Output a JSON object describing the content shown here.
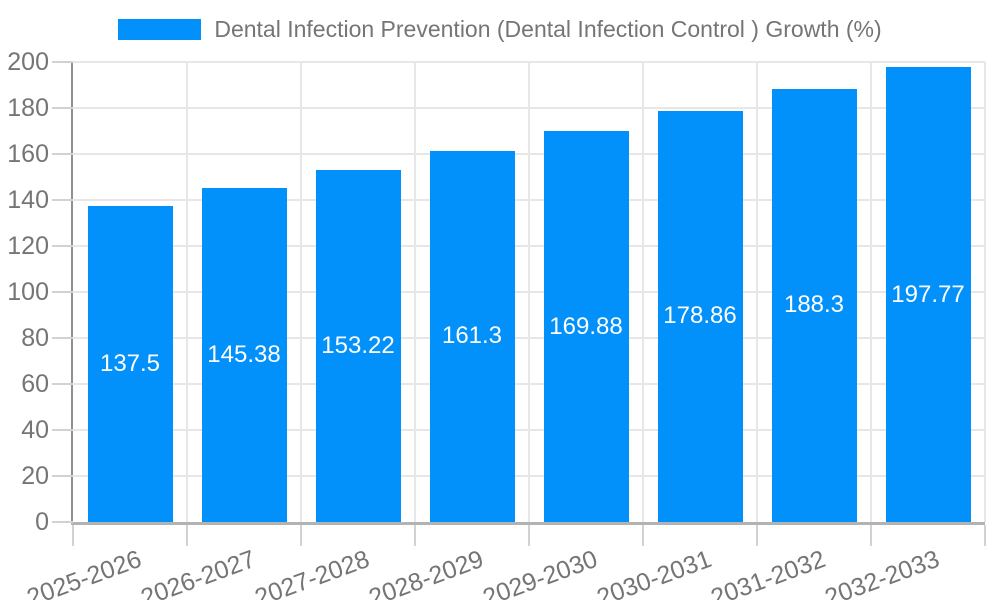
{
  "legend": {
    "label": "Dental Infection Prevention (Dental Infection Control ) Growth (%)"
  },
  "colors": {
    "bar": "#0290fa",
    "grid": "#e7e7e7",
    "tick": "#d2d2d2",
    "axis_y": "#8f8f8f",
    "axis_x": "#b3b3b3",
    "label_text": "#757575",
    "value_text": "#ffffff",
    "background": "#ffffff"
  },
  "chart_data": {
    "type": "bar",
    "title": "",
    "legend_entries": [
      "Dental Infection Prevention (Dental Infection Control ) Growth (%)"
    ],
    "legend_position": "top-center",
    "categories": [
      "2025-2026",
      "2026-2027",
      "2027-2028",
      "2028-2029",
      "2029-2030",
      "2030-2031",
      "2031-2032",
      "2032-2033"
    ],
    "values": [
      137.5,
      145.38,
      153.22,
      161.3,
      169.88,
      178.86,
      188.3,
      197.77
    ],
    "xlabel": "",
    "ylabel": "",
    "ylim": [
      0,
      200
    ],
    "ytick_step": 20,
    "yticks": [
      0,
      20,
      40,
      60,
      80,
      100,
      120,
      140,
      160,
      180,
      200
    ],
    "grid": true,
    "bar_label_position": "inside-center",
    "bar_label_color": "#ffffff",
    "x_label_rotation_deg": -20
  }
}
